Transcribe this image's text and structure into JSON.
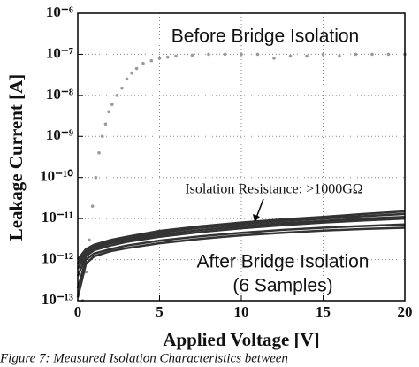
{
  "chart_data": {
    "type": "scatter-line",
    "x_label": "Applied Voltage [V]",
    "y_label": "Leakage Current [A]",
    "annotations": [
      "Before Bridge Isolation",
      "Isolation Resistance: >1000GΩ",
      "After Bridge Isolation",
      "(6 Samples)"
    ],
    "xlim": [
      0,
      20
    ],
    "xticks": [
      0,
      5,
      10,
      15,
      20
    ],
    "ylim": [
      1e-13,
      1e-06
    ],
    "log_y": true,
    "grid": true,
    "yticks": [
      {
        "value": 1e-13,
        "label": "10⁻¹³"
      },
      {
        "value": 1e-12,
        "label": "10⁻¹²"
      },
      {
        "value": 1e-11,
        "label": "10⁻¹¹"
      },
      {
        "value": 1e-10,
        "label": "10⁻¹⁰"
      },
      {
        "value": 1e-09,
        "label": "10⁻⁹"
      },
      {
        "value": 1e-08,
        "label": "10⁻⁸"
      },
      {
        "value": 1e-07,
        "label": "10⁻⁷"
      },
      {
        "value": 1e-06,
        "label": "10⁻⁶"
      }
    ],
    "series": [
      {
        "style": "points",
        "color": "#9a9a9a",
        "x": [
          0.3,
          0.5,
          0.7,
          0.9,
          1.1,
          1.3,
          1.5,
          1.7,
          1.9,
          2.1,
          2.4,
          2.7,
          3.0,
          3.3,
          3.6,
          4.0,
          4.5,
          5,
          5.5,
          6,
          7,
          8,
          9,
          10,
          11,
          12,
          13,
          14,
          15,
          16,
          17,
          18,
          19,
          20
        ],
        "values": [
          1e-13,
          5e-13,
          3e-12,
          2e-11,
          1e-10,
          4e-10,
          1e-09,
          2e-09,
          4e-09,
          6e-09,
          1e-08,
          1.5e-08,
          2.5e-08,
          3.5e-08,
          4.5e-08,
          6e-08,
          7e-08,
          8e-08,
          8.5e-08,
          9e-08,
          9.5e-08,
          1e-07,
          1e-07,
          1e-07,
          1e-07,
          8e-08,
          9e-08,
          9e-08,
          1e-07,
          9e-08,
          1e-07,
          1e-07,
          1e-07,
          1e-07
        ]
      },
      {
        "style": "line",
        "color": "#333333",
        "x": [
          0,
          0.5,
          1,
          2,
          3,
          5,
          7.5,
          10,
          12.5,
          15,
          17.5,
          20
        ],
        "values": [
          1e-12,
          1.8e-12,
          2.3e-12,
          3e-12,
          3.6e-12,
          5e-12,
          6.5e-12,
          8e-12,
          9.5e-12,
          1.1e-11,
          1.3e-11,
          1.5e-11
        ]
      },
      {
        "style": "line",
        "color": "#333333",
        "x": [
          0,
          0.5,
          1,
          2,
          3,
          5,
          7.5,
          10,
          12.5,
          15,
          17.5,
          20
        ],
        "values": [
          8e-13,
          1.6e-12,
          2.1e-12,
          2.8e-12,
          3.3e-12,
          4.5e-12,
          6e-12,
          7.3e-12,
          8.7e-12,
          1e-11,
          1.15e-11,
          1.3e-11
        ]
      },
      {
        "style": "line",
        "color": "#333333",
        "x": [
          0,
          0.5,
          1,
          2,
          3,
          5,
          7.5,
          10,
          12.5,
          15,
          17.5,
          20
        ],
        "values": [
          6e-13,
          1.4e-12,
          1.9e-12,
          2.5e-12,
          3e-12,
          4e-12,
          5.3e-12,
          6.5e-12,
          7.7e-12,
          8.8e-12,
          1e-11,
          1.1e-11
        ]
      },
      {
        "style": "line",
        "color": "#333333",
        "x": [
          0,
          0.5,
          1,
          2,
          3,
          5,
          7.5,
          10,
          12.5,
          15,
          17.5,
          20
        ],
        "values": [
          4e-13,
          1.2e-12,
          1.7e-12,
          2.2e-12,
          2.7e-12,
          3.6e-12,
          4.7e-12,
          5.8e-12,
          6.9e-12,
          8e-12,
          9e-12,
          1e-11
        ]
      },
      {
        "style": "line",
        "color": "#333333",
        "x": [
          0,
          0.5,
          1,
          2,
          3,
          5,
          7.5,
          10,
          12.5,
          15,
          17.5,
          20
        ],
        "values": [
          2e-13,
          1e-12,
          1.4e-12,
          1.8e-12,
          2.2e-12,
          2.9e-12,
          3.7e-12,
          4.5e-12,
          5.3e-12,
          6e-12,
          6.6e-12,
          7.2e-12
        ]
      },
      {
        "style": "line",
        "color": "#333333",
        "x": [
          0,
          0.5,
          1,
          2,
          3,
          5,
          7.5,
          10,
          12.5,
          15,
          17.5,
          20
        ],
        "values": [
          1.2e-13,
          8e-13,
          1.2e-12,
          1.6e-12,
          1.9e-12,
          2.5e-12,
          3.2e-12,
          3.9e-12,
          4.5e-12,
          5.1e-12,
          5.6e-12,
          6e-12
        ]
      }
    ]
  },
  "caption": "Figure 7: Measured Isolation Characteristics between"
}
